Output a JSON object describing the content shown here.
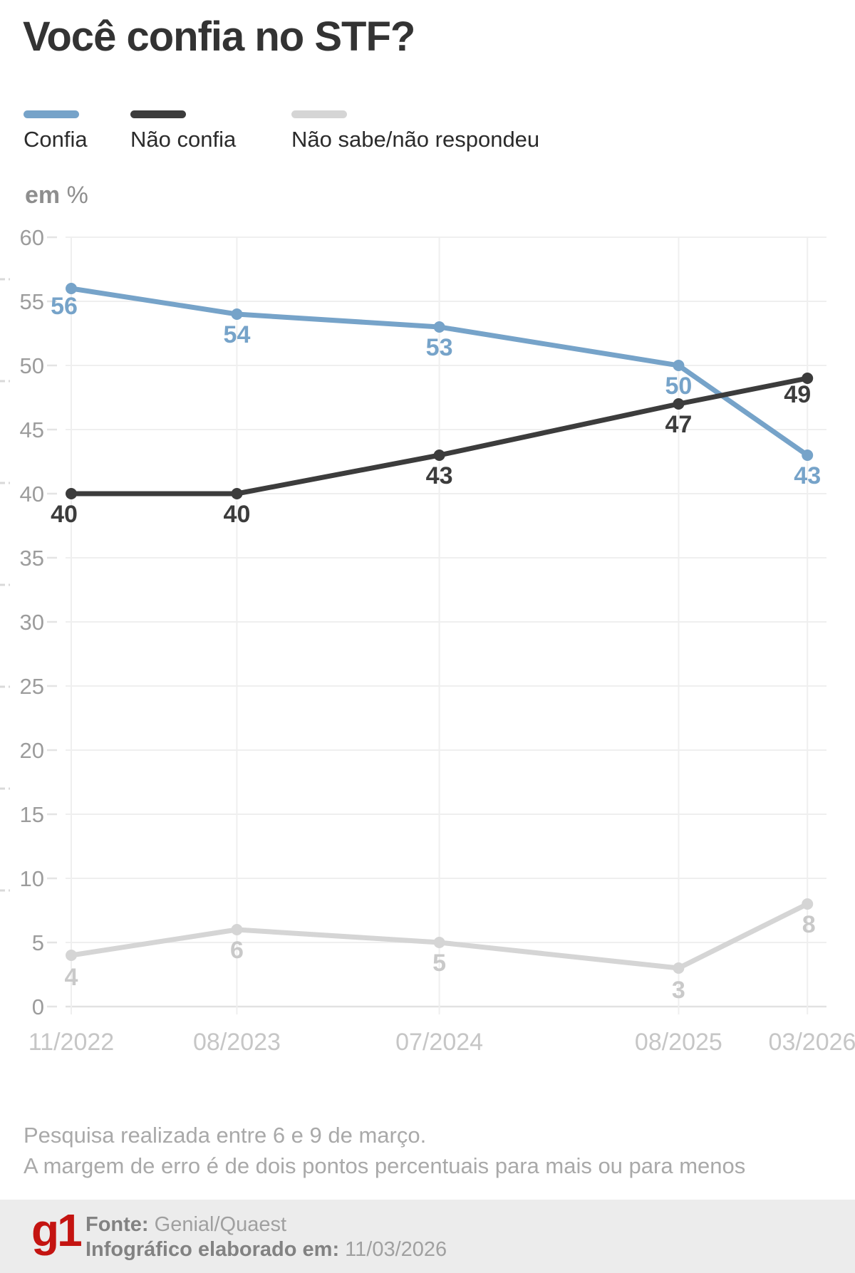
{
  "title": "Você confia no STF?",
  "unit_label": {
    "bold": "em",
    "rest": " %"
  },
  "legend": [
    {
      "label": "Confia",
      "color": "#76a3c9"
    },
    {
      "label": "Não confia",
      "color": "#3c3c3c"
    },
    {
      "label": "Não sabe/não respondeu",
      "color": "#d5d5d5"
    }
  ],
  "chart_data": {
    "type": "line",
    "title": "Você confia no STF?",
    "ylabel": "em %",
    "ylim": [
      0,
      60
    ],
    "yticks": [
      0,
      5,
      10,
      15,
      20,
      25,
      30,
      35,
      40,
      45,
      50,
      55,
      60
    ],
    "grid": true,
    "legend_position": "top",
    "categories": [
      "11/2022",
      "08/2023",
      "07/2024",
      "08/2025",
      "03/2026"
    ],
    "x_months_offset": [
      0,
      9,
      20,
      33,
      40
    ],
    "series": [
      {
        "name": "Confia",
        "color": "#76a3c9",
        "values": [
          56,
          54,
          53,
          50,
          43
        ]
      },
      {
        "name": "Não confia",
        "color": "#3c3c3c",
        "values": [
          40,
          40,
          43,
          47,
          49
        ]
      },
      {
        "name": "Não sabe/não respondeu",
        "color": "#d5d5d5",
        "label_color": "#c9c9c9",
        "values": [
          4,
          6,
          5,
          3,
          8
        ]
      }
    ]
  },
  "notes": [
    "Pesquisa realizada entre 6 e 9 de março.",
    "A margem de erro é de dois pontos percentuais para mais ou para menos"
  ],
  "footer": {
    "logo": "g1",
    "source_label": "Fonte:",
    "source_value": " Genial/Quaest",
    "info_label": "Infográfico elaborado em:",
    "info_value": " 11/03/2026"
  },
  "colors": {
    "title": "#333333",
    "axis_labels": "#9c9c9c",
    "x_labels": "#c6c6c6",
    "gridline": "#efefef",
    "zero_line": "#e2e2e2",
    "notes": "#a9a9a9",
    "footer_bg": "#ececec",
    "g1_red": "#c41411"
  }
}
